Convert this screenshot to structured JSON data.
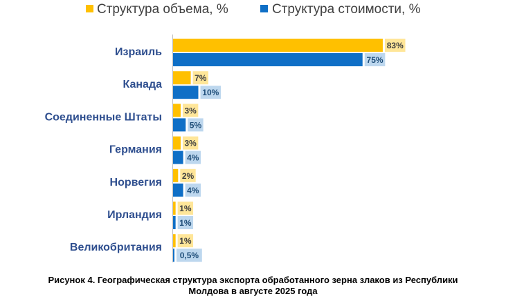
{
  "chart_data": {
    "type": "bar",
    "orientation": "horizontal",
    "categories": [
      "Израиль",
      "Канада",
      "Соединенные Штаты",
      "Германия",
      "Норвегия",
      "Ирландия",
      "Великобритания"
    ],
    "series": [
      {
        "name": "Структура объема, %",
        "color": "#FFC000",
        "values": [
          83,
          7,
          3,
          3,
          2,
          1,
          1
        ],
        "labels": [
          "83%",
          "7%",
          "3%",
          "3%",
          "2%",
          "1%",
          "1%"
        ]
      },
      {
        "name": "Структура стоимости, %",
        "color": "#0F6FC6",
        "values": [
          75,
          10,
          5,
          4,
          4,
          1,
          0.5
        ],
        "labels": [
          "75%",
          "10%",
          "5%",
          "4%",
          "4%",
          "1%",
          "0,5%"
        ]
      }
    ],
    "xlim": [
      0,
      100
    ],
    "grid": false,
    "legend_position": "top",
    "category_label_color": "#2F4F8F"
  },
  "caption": {
    "line1": "Рисунок 4.  Географическая структура экспорта обработанного зерна злаков из Республики",
    "line2": "Молдова в августе 2025 года"
  }
}
